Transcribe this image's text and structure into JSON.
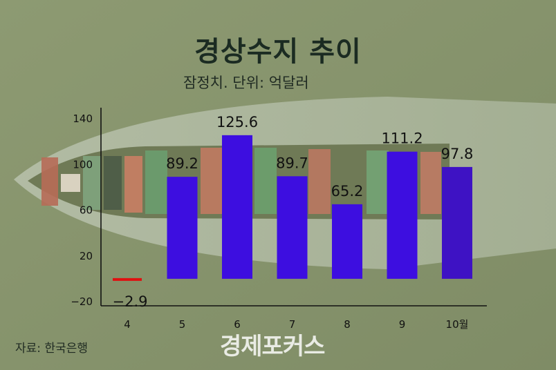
{
  "header": {
    "title": "경상수지 추이",
    "subtitle": "잠정치. 단위: 억달러"
  },
  "footer": {
    "source": "자료: 한국은행",
    "watermark": "경제포커스"
  },
  "colors": {
    "bar": "#3d0ee0",
    "bar_last": "#3e12c4",
    "negative": "#e01010",
    "axis": "#111111",
    "text": "#111111"
  },
  "chart_data": {
    "type": "bar",
    "categories": [
      "4",
      "5",
      "6",
      "7",
      "8",
      "9",
      "10월"
    ],
    "values": [
      -2.9,
      89.2,
      125.6,
      89.7,
      65.2,
      111.2,
      97.8
    ],
    "value_labels": [
      "−2.9",
      "89.2",
      "125.6",
      "89.7",
      "65.2",
      "111.2",
      "97.8"
    ],
    "y_ticks": [
      140,
      100,
      60,
      20,
      -20
    ],
    "y_tick_labels": [
      "140",
      "100",
      "60",
      "20",
      "−20"
    ],
    "ylim": [
      -20,
      140
    ],
    "title": "경상수지 추이",
    "xlabel": "",
    "ylabel": "",
    "grid": false,
    "legend": "none"
  }
}
